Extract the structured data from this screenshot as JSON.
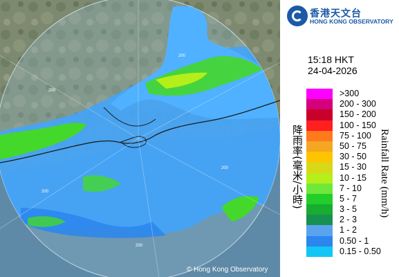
{
  "map": {
    "range_labels": [
      "200",
      "200",
      "200",
      "200",
      "200"
    ],
    "copyright": "© Hong Kong Observatory",
    "colors": {
      "land": "#7b8a6f",
      "sea_in_range": "#6fa4c4",
      "radar_light": "#3fa4ff",
      "radar_green": "#44d82a",
      "coast": "#1c1c1c"
    }
  },
  "panel": {
    "logo_zh": "香港天文台",
    "logo_en": "HONG KONG OBSERVATORY",
    "logo_icon": "hko-logo-icon",
    "time": "15:18 HKT",
    "date": "24-04-2026",
    "unit_zh": "降雨率(毫米/小時)",
    "unit_en": "Rainfall Rate (mm/h)",
    "legend": [
      {
        "label": ">300",
        "color": "#ff00ff"
      },
      {
        "label": "200 - 300",
        "color": "#d4007c"
      },
      {
        "label": "150 - 200",
        "color": "#c8002a"
      },
      {
        "label": "100 - 150",
        "color": "#ff1f1f"
      },
      {
        "label": "75 - 100",
        "color": "#ff7a1c"
      },
      {
        "label": "50 - 75",
        "color": "#f5a623"
      },
      {
        "label": "30 - 50",
        "color": "#ffc400"
      },
      {
        "label": "15 - 30",
        "color": "#d8d818"
      },
      {
        "label": "10 - 15",
        "color": "#b6ee1a"
      },
      {
        "label": "7 - 10",
        "color": "#6fe83a"
      },
      {
        "label": "5 - 7",
        "color": "#22cf2a"
      },
      {
        "label": "3 - 5",
        "color": "#17ad30"
      },
      {
        "label": "2 - 3",
        "color": "#17914f"
      },
      {
        "label": "1 - 2",
        "color": "#5aa4ef"
      },
      {
        "label": "0.50 - 1",
        "color": "#2b86ee"
      },
      {
        "label": "0.15 - 0.50",
        "color": "#12c7f5"
      }
    ]
  }
}
